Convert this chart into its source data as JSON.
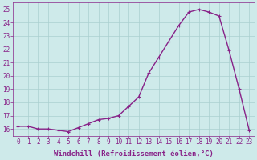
{
  "x": [
    0,
    1,
    2,
    3,
    4,
    5,
    6,
    7,
    8,
    9,
    10,
    11,
    12,
    13,
    14,
    15,
    16,
    17,
    18,
    19,
    20,
    21,
    22,
    23
  ],
  "y": [
    16.2,
    16.2,
    16.0,
    16.0,
    15.9,
    15.8,
    16.1,
    16.4,
    16.7,
    16.8,
    17.0,
    17.7,
    18.4,
    20.2,
    21.4,
    22.6,
    23.8,
    24.8,
    25.0,
    24.8,
    24.5,
    21.9,
    19.0,
    15.9
  ],
  "line_color": "#882288",
  "marker": "+",
  "marker_color": "#882288",
  "marker_size": 3,
  "linewidth": 1.0,
  "xlabel": "Windchill (Refroidissement éolien,°C)",
  "ylabel": "",
  "xlim": [
    -0.5,
    23.5
  ],
  "ylim": [
    15.5,
    25.5
  ],
  "yticks": [
    16,
    17,
    18,
    19,
    20,
    21,
    22,
    23,
    24,
    25
  ],
  "xticks": [
    0,
    1,
    2,
    3,
    4,
    5,
    6,
    7,
    8,
    9,
    10,
    11,
    12,
    13,
    14,
    15,
    16,
    17,
    18,
    19,
    20,
    21,
    22,
    23
  ],
  "grid_color": "#aacfcf",
  "bg_color": "#ceeaea",
  "tick_color": "#882288",
  "label_color": "#882288",
  "tick_fontsize": 5.5,
  "xlabel_fontsize": 6.5
}
